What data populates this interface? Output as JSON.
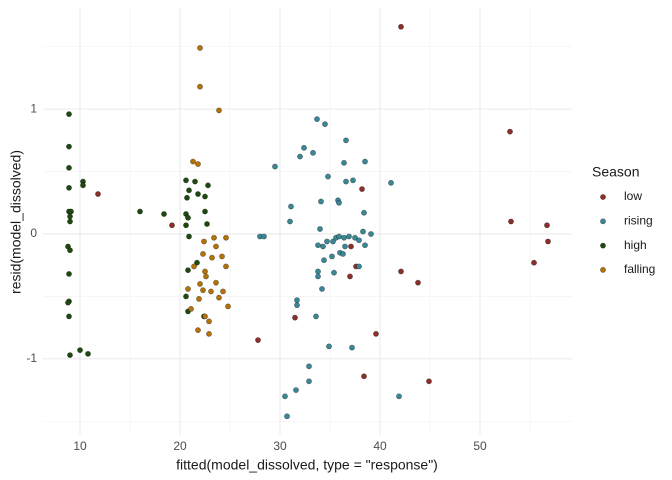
{
  "chart_data": {
    "type": "scatter",
    "x_label": "fitted(model_dissolved, type = \"response\")",
    "y_label": "resid(model_dissolved)",
    "legend_title": "Season",
    "legend_position": "right",
    "grid": true,
    "xlim": [
      6.3,
      59.2
    ],
    "ylim": [
      -1.61,
      1.81
    ],
    "xticks": [
      10,
      20,
      30,
      40,
      50
    ],
    "yticks": [
      -1,
      0,
      1
    ],
    "xminor": [
      15,
      25,
      35,
      45,
      55
    ],
    "yminor": [
      -1.5,
      -0.5,
      0.5,
      1.5
    ],
    "series": [
      {
        "name": "low",
        "color": "#8b2f2a",
        "x": [
          11.8,
          19.2,
          27.8,
          31.5,
          42.1,
          53.0,
          53.1,
          56.7,
          56.8,
          55.4,
          42.1,
          43.8,
          44.9,
          38.4,
          39.6,
          38.2,
          37.6,
          37.1,
          37.0
        ],
        "values": [
          0.32,
          0.07,
          -0.85,
          -0.67,
          1.66,
          0.82,
          0.1,
          0.07,
          -0.06,
          -0.23,
          -0.3,
          -0.39,
          -1.18,
          -1.14,
          -0.8,
          0.36,
          -0.26,
          -0.1,
          -0.34
        ]
      },
      {
        "name": "rising",
        "color": "#3a8896",
        "x": [
          30.5,
          31.6,
          32.9,
          32.9,
          33.6,
          31.7,
          31.7,
          31.1,
          31.0,
          29.5,
          28.0,
          28.4,
          32.0,
          32.4,
          33.3,
          33.7,
          34.5,
          36.6,
          34.8,
          36.4,
          38.5,
          41.1,
          35.8,
          35.9,
          36.6,
          37.3,
          38.4,
          34.1,
          34.0,
          34.3,
          33.8,
          34.7,
          35.3,
          35.6,
          35.9,
          36.4,
          36.9,
          37.5,
          37.9,
          38.3,
          39.1,
          38.5,
          36.5,
          36.0,
          35.2,
          34.4,
          33.8,
          33.8,
          34.2,
          35.4,
          37.9,
          34.9,
          37.2,
          41.9,
          30.7,
          36.3
        ],
        "values": [
          -1.3,
          -1.25,
          -1.06,
          -1.18,
          -0.66,
          -0.53,
          -0.57,
          0.22,
          0.1,
          0.54,
          -0.02,
          -0.02,
          0.62,
          0.69,
          0.65,
          0.92,
          0.88,
          0.75,
          0.46,
          0.57,
          0.58,
          0.41,
          0.27,
          0.25,
          0.42,
          0.43,
          0.17,
          0.26,
          0.04,
          -0.1,
          -0.09,
          -0.06,
          -0.06,
          -0.03,
          -0.02,
          -0.03,
          -0.02,
          -0.03,
          -0.05,
          0.02,
          0.0,
          -0.09,
          -0.1,
          -0.15,
          -0.18,
          -0.21,
          -0.3,
          -0.34,
          -0.44,
          -0.31,
          -0.26,
          -0.9,
          -0.91,
          -1.3,
          -1.46,
          -0.16
        ]
      },
      {
        "name": "high",
        "color": "#1f4a0e",
        "x": [
          8.9,
          8.9,
          8.9,
          8.9,
          8.9,
          9.1,
          9.0,
          9.0,
          8.8,
          9.0,
          8.9,
          8.9,
          8.8,
          8.9,
          9.0,
          10.0,
          10.8,
          10.3,
          10.3,
          16.0,
          18.4,
          20.6,
          21.5,
          22.8,
          20.9,
          20.7,
          21.8,
          22.5,
          20.6,
          20.8,
          22.5,
          22.7,
          20.6,
          20.9,
          20.8,
          20.6,
          20.8,
          22.4,
          21.7
        ],
        "values": [
          0.96,
          0.7,
          0.53,
          0.37,
          0.18,
          0.18,
          0.14,
          0.1,
          -0.1,
          -0.13,
          -0.32,
          -0.54,
          -0.55,
          -0.66,
          -0.97,
          -0.93,
          -0.96,
          0.42,
          0.39,
          0.18,
          0.16,
          0.43,
          0.42,
          0.39,
          0.35,
          0.29,
          0.32,
          0.3,
          0.16,
          0.13,
          0.18,
          0.08,
          0.07,
          -0.02,
          -0.29,
          -0.5,
          -0.62,
          -0.66,
          -0.23
        ]
      },
      {
        "name": "falling",
        "color": "#b4720a",
        "x": [
          22.0,
          22.0,
          23.9,
          21.3,
          21.8,
          23.4,
          24.6,
          23.6,
          22.4,
          22.3,
          23.2,
          24.2,
          21.4,
          22.5,
          22.6,
          23.6,
          22.0,
          24.3,
          20.8,
          22.3,
          23.1,
          21.9,
          23.9,
          24.8,
          21.1,
          22.5,
          22.9,
          21.8,
          22.9,
          24.6
        ],
        "values": [
          1.49,
          1.18,
          0.99,
          0.58,
          0.56,
          -0.03,
          -0.03,
          -0.1,
          -0.06,
          -0.16,
          -0.19,
          -0.18,
          -0.26,
          -0.3,
          -0.34,
          -0.39,
          -0.4,
          -0.46,
          -0.44,
          -0.45,
          -0.46,
          -0.52,
          -0.51,
          -0.58,
          -0.6,
          -0.66,
          -0.7,
          -0.77,
          -0.8,
          -0.26
        ]
      }
    ]
  }
}
